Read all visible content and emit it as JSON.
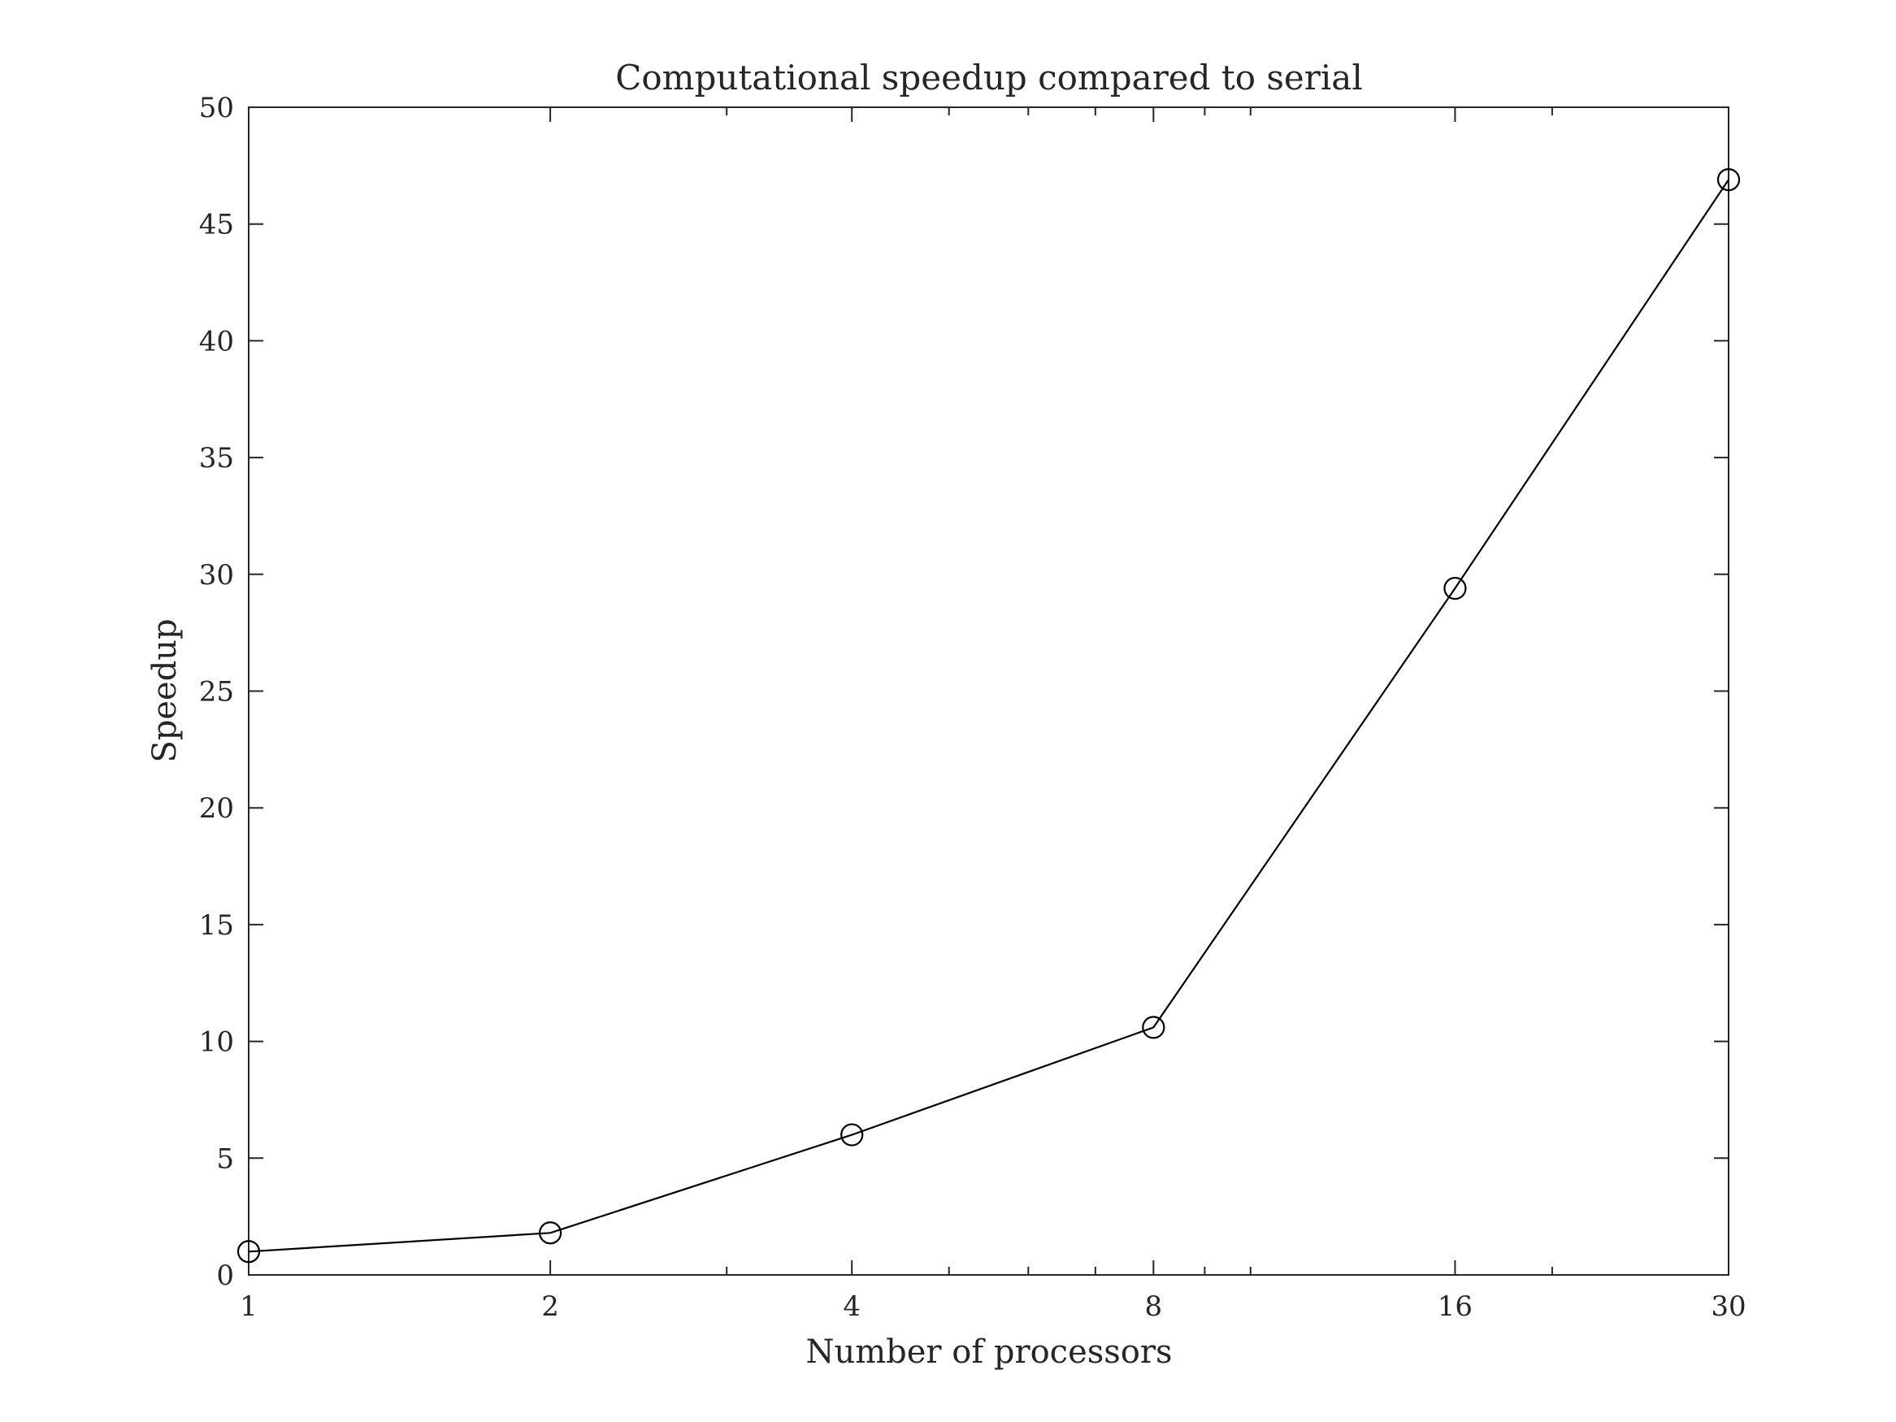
{
  "chart_data": {
    "type": "line",
    "title": "Computational speedup compared to serial",
    "xlabel": "Number of processors",
    "ylabel": "Speedup",
    "x_scale": "log",
    "xlim": [
      1,
      30
    ],
    "ylim": [
      0,
      50
    ],
    "x_ticks": [
      1,
      2,
      4,
      8,
      16,
      30
    ],
    "x_tick_labels": [
      "1",
      "2",
      "4",
      "8",
      "16",
      "30"
    ],
    "x_minor_ticks": [
      3,
      5,
      6,
      7,
      9,
      10,
      20
    ],
    "y_ticks": [
      0,
      5,
      10,
      15,
      20,
      25,
      30,
      35,
      40,
      45,
      50
    ],
    "y_tick_labels": [
      "0",
      "5",
      "10",
      "15",
      "20",
      "25",
      "30",
      "35",
      "40",
      "45",
      "50"
    ],
    "grid": false,
    "legend": "none",
    "series": [
      {
        "x": [
          1,
          2,
          4,
          8,
          16,
          30
        ],
        "values": [
          1.0,
          1.8,
          6.0,
          10.6,
          29.4,
          46.9
        ],
        "marker": "circle",
        "color": "#000000"
      }
    ]
  }
}
